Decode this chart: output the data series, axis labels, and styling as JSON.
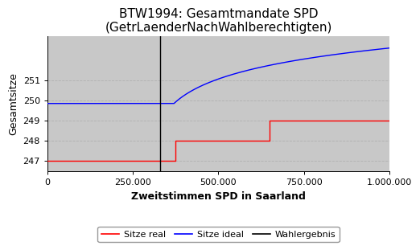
{
  "title_line1": "BTW1994: Gesamtmandate SPD",
  "title_line2": "(GetrLaenderNachWahlberechtigten)",
  "xlabel": "Zweitstimmen SPD in Saarland",
  "ylabel": "Gesamtsitze",
  "xlim": [
    0,
    1000000
  ],
  "ylim": [
    246.5,
    253.2
  ],
  "bg_color": "#c8c8c8",
  "wahlergebnis_x": 330000,
  "red_steps_x": [
    0,
    375000,
    375000,
    650000,
    650000,
    1000000
  ],
  "red_steps_y": [
    247,
    247,
    248,
    248,
    249,
    249
  ],
  "blue_start_y": 249.85,
  "blue_end_y": 252.6,
  "blue_x_inflect": 370000,
  "blue_log_scale": 80000,
  "yticks": [
    247,
    248,
    249,
    250,
    251
  ],
  "xticks": [
    0,
    250000,
    500000,
    750000,
    1000000
  ],
  "xtick_labels": [
    "0",
    "250.000",
    "500.000",
    "750.000",
    "1.000.000"
  ],
  "legend_labels": [
    "Sitze real",
    "Sitze ideal",
    "Wahlergebnis"
  ],
  "legend_colors": [
    "red",
    "blue",
    "black"
  ],
  "grid_color": "#b0b0b0",
  "title_fontsize": 11,
  "axis_label_fontsize": 9,
  "tick_fontsize": 8,
  "legend_fontsize": 8
}
